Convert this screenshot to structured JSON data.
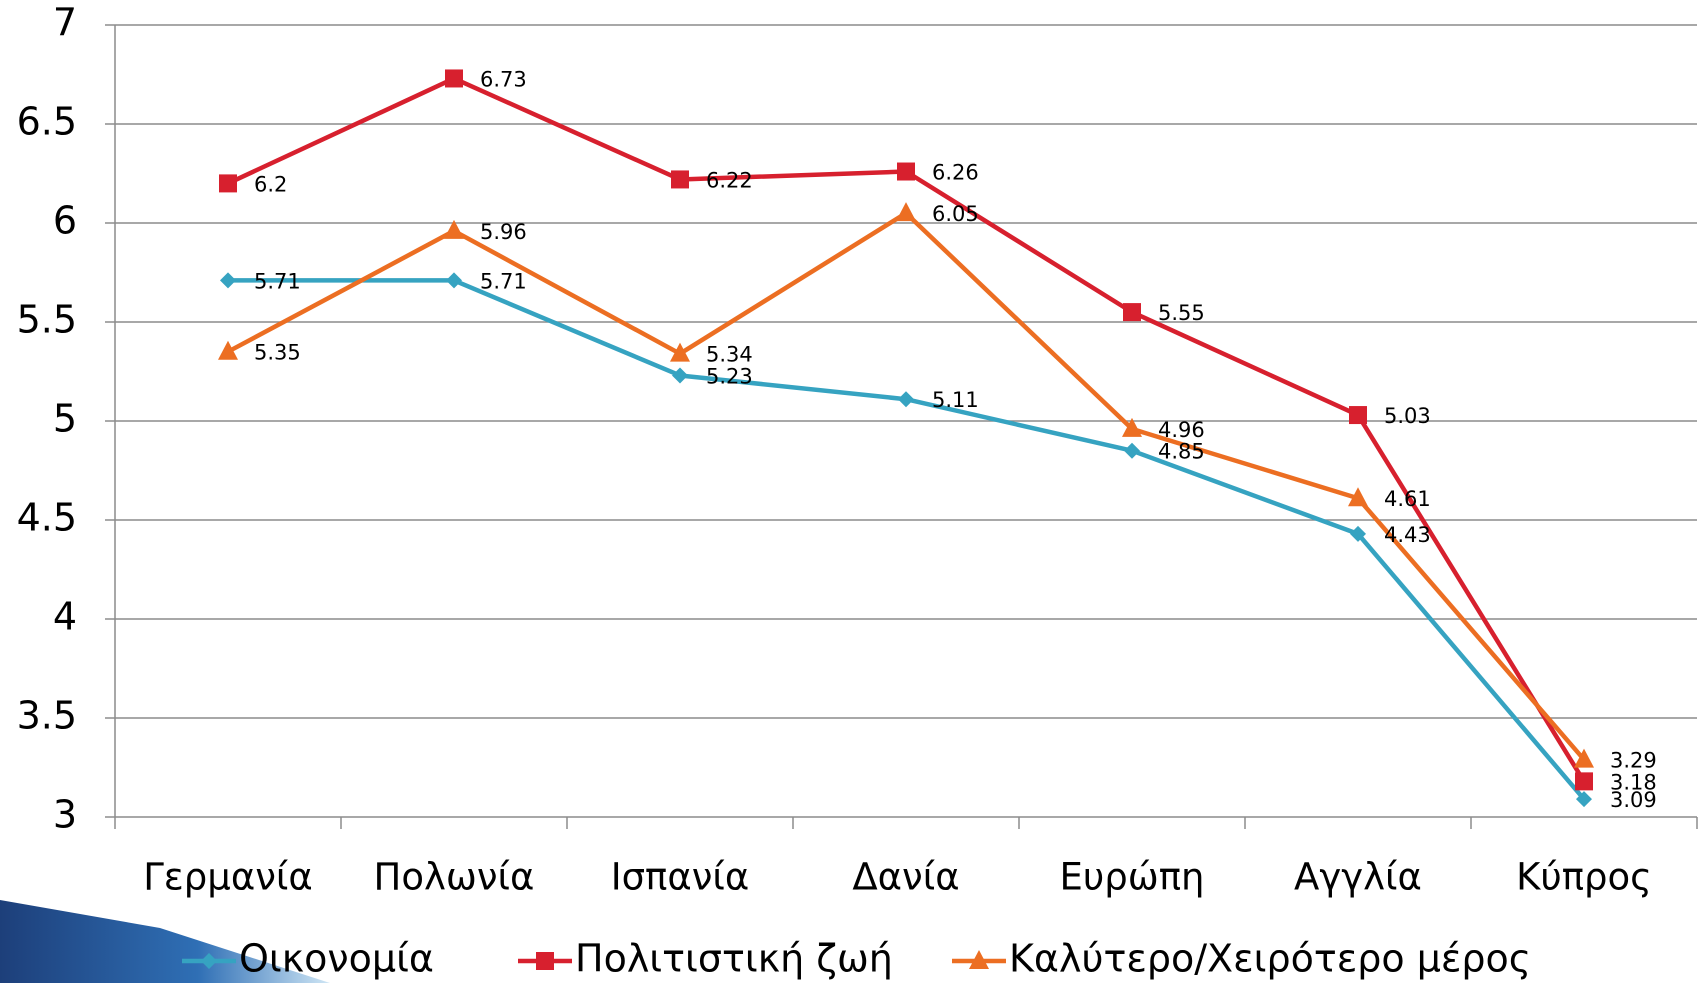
{
  "chart_data": {
    "type": "line",
    "categories": [
      "Γερμανία",
      "Πολωνία",
      "Ισπανία",
      "Δανία",
      "Ευρώπη",
      "Αγγλία",
      "Κύπρος"
    ],
    "series": [
      {
        "name": "Οικονομία",
        "color": "#36a3c1",
        "marker": "diamond",
        "values": [
          5.71,
          5.71,
          5.23,
          5.11,
          4.85,
          4.43,
          3.09
        ]
      },
      {
        "name": "Πολιτιστική ζωή",
        "color": "#d7202e",
        "marker": "square",
        "values": [
          6.2,
          6.73,
          6.22,
          6.26,
          5.55,
          5.03,
          3.18
        ]
      },
      {
        "name": "Καλύτερο/Χειρότερο μέρος",
        "color": "#ec6e22",
        "marker": "triangle",
        "values": [
          5.35,
          5.96,
          5.34,
          6.05,
          4.96,
          4.61,
          3.29
        ]
      }
    ],
    "ylim": [
      3,
      7
    ],
    "yticks": [
      3,
      3.5,
      4,
      4.5,
      5,
      5.5,
      6,
      6.5,
      7
    ],
    "grid": true,
    "legend": "bottom"
  }
}
